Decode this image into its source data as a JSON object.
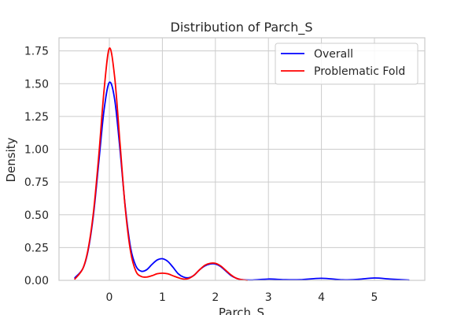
{
  "chart_data": {
    "type": "line",
    "title": "Distribution of Parch_S",
    "xlabel": "Parch_S",
    "ylabel": "Density",
    "xlim": [
      -0.95,
      5.95
    ],
    "ylim": [
      0,
      1.85
    ],
    "x_ticks": [
      0,
      1,
      2,
      3,
      4,
      5
    ],
    "y_ticks": [
      0.0,
      0.25,
      0.5,
      0.75,
      1.0,
      1.25,
      1.5,
      1.75
    ],
    "y_tick_labels": [
      "0.00",
      "0.25",
      "0.50",
      "0.75",
      "1.00",
      "1.25",
      "1.50",
      "1.75"
    ],
    "grid": true,
    "legend_position": "top-right",
    "series": [
      {
        "name": "Overall",
        "color": "#0000ff",
        "x": [
          -0.65,
          -0.5,
          -0.4,
          -0.3,
          -0.2,
          -0.1,
          0.0,
          0.1,
          0.2,
          0.3,
          0.4,
          0.5,
          0.6,
          0.7,
          0.8,
          0.9,
          1.0,
          1.1,
          1.2,
          1.3,
          1.4,
          1.5,
          1.6,
          1.7,
          1.8,
          1.9,
          2.0,
          2.1,
          2.2,
          2.3,
          2.4,
          2.5,
          2.7,
          3.0,
          3.3,
          3.6,
          4.0,
          4.4,
          4.7,
          5.0,
          5.3,
          5.65
        ],
        "y": [
          0.02,
          0.09,
          0.23,
          0.5,
          0.9,
          1.3,
          1.51,
          1.38,
          1.0,
          0.56,
          0.25,
          0.11,
          0.07,
          0.08,
          0.12,
          0.155,
          0.165,
          0.145,
          0.1,
          0.05,
          0.025,
          0.02,
          0.04,
          0.08,
          0.11,
          0.125,
          0.125,
          0.105,
          0.07,
          0.035,
          0.015,
          0.005,
          0.002,
          0.01,
          0.005,
          0.005,
          0.016,
          0.004,
          0.008,
          0.018,
          0.01,
          0.002
        ]
      },
      {
        "name": "Problematic Fold",
        "color": "#ff0000",
        "x": [
          -0.65,
          -0.5,
          -0.4,
          -0.3,
          -0.2,
          -0.1,
          0.0,
          0.1,
          0.2,
          0.3,
          0.4,
          0.5,
          0.6,
          0.7,
          0.8,
          0.9,
          1.0,
          1.1,
          1.2,
          1.3,
          1.4,
          1.5,
          1.6,
          1.7,
          1.8,
          1.9,
          2.0,
          2.1,
          2.2,
          2.3,
          2.4,
          2.5,
          2.6
        ],
        "y": [
          0.01,
          0.09,
          0.24,
          0.52,
          0.95,
          1.45,
          1.77,
          1.55,
          1.05,
          0.55,
          0.22,
          0.07,
          0.03,
          0.025,
          0.035,
          0.05,
          0.055,
          0.05,
          0.035,
          0.02,
          0.01,
          0.015,
          0.04,
          0.08,
          0.115,
          0.13,
          0.13,
          0.11,
          0.075,
          0.04,
          0.015,
          0.005,
          0.0
        ]
      }
    ]
  }
}
